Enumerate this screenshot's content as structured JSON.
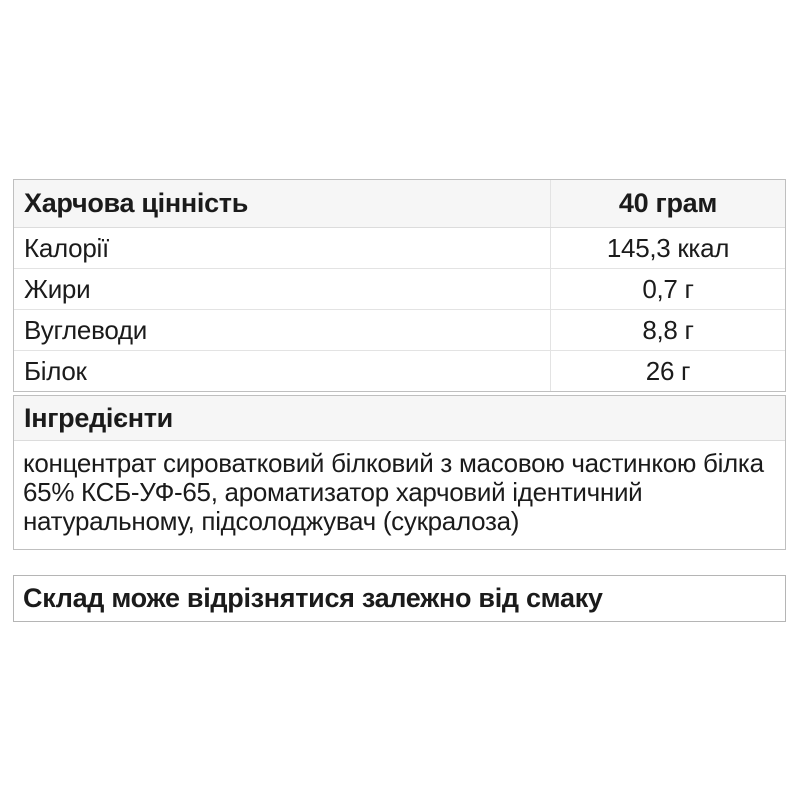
{
  "nutrition_table": {
    "header": {
      "label": "Харчова цінність",
      "value": "40 грам"
    },
    "rows": [
      {
        "label": "Калорії",
        "value": "145,3 ккал"
      },
      {
        "label": "Жири",
        "value": "0,7 г"
      },
      {
        "label": "Вуглеводи",
        "value": "8,8 г"
      },
      {
        "label": "Білок",
        "value": "26 г"
      }
    ]
  },
  "ingredients": {
    "title": "Інгредієнти",
    "text": "концентрат сироватковий білковий з масовою частинкою білка 65% КСБ-УФ-65, ароматизатор харчовий ідентичний натуральному, підсолоджувач (сукралоза)"
  },
  "disclaimer": {
    "text": "Склад може відрізнятися залежно від смаку"
  },
  "colors": {
    "background": "#ffffff",
    "header_bg": "#f6f6f6",
    "border_outer": "#bfbfbf",
    "border_inner": "#e3e3e3",
    "text": "#1b1b1b"
  }
}
